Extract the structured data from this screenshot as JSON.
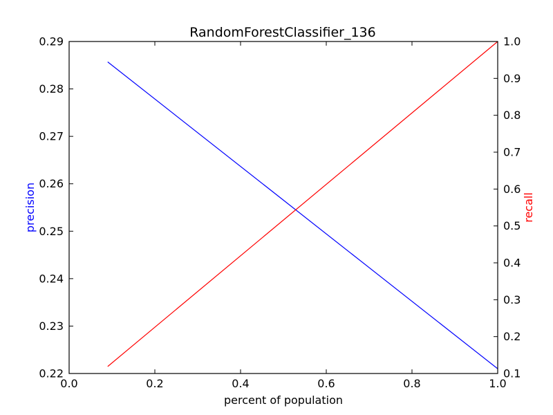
{
  "chart_data": {
    "type": "line",
    "title": "RandomForestClassifier_136",
    "xlabel": "percent of population",
    "ylabel_left": "precision",
    "ylabel_right": "recall",
    "xlim": [
      0.0,
      1.0
    ],
    "ylim_left": [
      0.22,
      0.29
    ],
    "ylim_right": [
      0.1,
      1.0
    ],
    "x_ticks": [
      "0.0",
      "0.2",
      "0.4",
      "0.6",
      "0.8",
      "1.0"
    ],
    "y_left_ticks": [
      "0.22",
      "0.23",
      "0.24",
      "0.25",
      "0.26",
      "0.27",
      "0.28",
      "0.29"
    ],
    "y_right_ticks": [
      "0.1",
      "0.2",
      "0.3",
      "0.4",
      "0.5",
      "0.6",
      "0.7",
      "0.8",
      "0.9",
      "1.0"
    ],
    "grid": false,
    "series": [
      {
        "name": "precision",
        "axis": "left",
        "color": "#0000ff",
        "x": [
          0.09,
          1.0
        ],
        "y": [
          0.2857,
          0.221
        ]
      },
      {
        "name": "recall",
        "axis": "right",
        "color": "#ff0000",
        "x": [
          0.09,
          1.0
        ],
        "y": [
          0.119,
          1.0
        ]
      }
    ]
  }
}
